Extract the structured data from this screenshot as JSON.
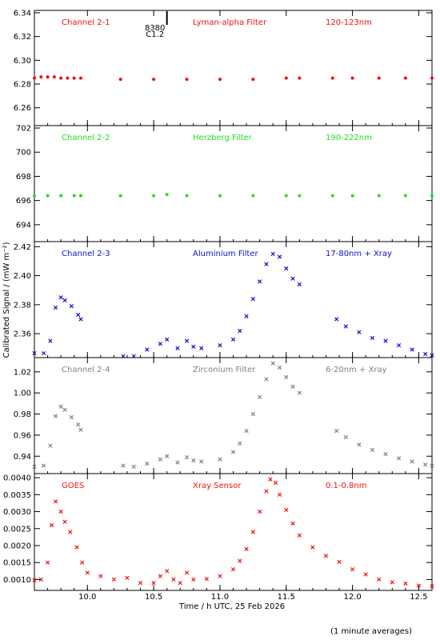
{
  "chart_data": {
    "type": "scatter",
    "ylabel": "Calibrated Signal / (mW m⁻²)",
    "xlabel": "Time / h UTC, 25 Feb 2026",
    "footnote": "(1 minute averages)",
    "xlim": [
      9.6,
      12.6
    ],
    "x_ticks": [
      "10.0",
      "10.5",
      "11.0",
      "11.5",
      "12.0",
      "12.5"
    ],
    "x_tick_values": [
      10.0,
      10.5,
      11.0,
      11.5,
      12.0,
      12.5
    ],
    "marker": "x",
    "event_annotation": {
      "x": 10.6,
      "labels": [
        "8380",
        "C1.2"
      ]
    },
    "panels": [
      {
        "channel": "Channel 2-1",
        "filter": "Lyman-alpha Filter",
        "band": "120-123nm",
        "color": "#ee1111",
        "marker": "dot",
        "ylim": [
          6.245,
          6.342
        ],
        "yticks": [
          6.26,
          6.28,
          6.3,
          6.32,
          6.34
        ],
        "ytick_labels": [
          "6.26",
          "6.28",
          "6.30",
          "6.32",
          "6.34"
        ],
        "x": [
          9.6,
          9.65,
          9.7,
          9.75,
          9.8,
          9.85,
          9.9,
          9.95,
          10.25,
          10.5,
          10.75,
          11.0,
          11.25,
          11.5,
          11.6,
          11.85,
          12.0,
          12.2,
          12.4,
          12.6
        ],
        "y": [
          6.285,
          6.286,
          6.286,
          6.286,
          6.285,
          6.285,
          6.285,
          6.285,
          6.284,
          6.284,
          6.284,
          6.284,
          6.284,
          6.285,
          6.285,
          6.285,
          6.285,
          6.285,
          6.285,
          6.285
        ]
      },
      {
        "channel": "Channel 2-2",
        "filter": "Herzberg Filter",
        "band": "190-222nm",
        "color": "#22dd22",
        "marker": "dot",
        "ylim": [
          692.6,
          702.2
        ],
        "yticks": [
          694,
          696,
          698,
          700,
          702
        ],
        "ytick_labels": [
          "694",
          "696",
          "698",
          "700",
          "702"
        ],
        "x": [
          9.6,
          9.7,
          9.8,
          9.9,
          9.95,
          10.25,
          10.5,
          10.6,
          10.75,
          11.0,
          11.25,
          11.5,
          11.6,
          11.85,
          12.0,
          12.2,
          12.4,
          12.6
        ],
        "y": [
          696.4,
          696.4,
          696.4,
          696.4,
          696.4,
          696.4,
          696.4,
          696.5,
          696.4,
          696.4,
          696.4,
          696.4,
          696.4,
          696.4,
          696.4,
          696.4,
          696.4,
          696.4
        ]
      },
      {
        "channel": "Channel 2-3",
        "filter": "Aluminium Filter",
        "band": "17-80nm + Xray",
        "color": "#1111cc",
        "marker": "x",
        "ylim": [
          2.3435,
          2.4235
        ],
        "yticks": [
          2.36,
          2.38,
          2.4,
          2.42
        ],
        "ytick_labels": [
          "2.36",
          "2.38",
          "2.40",
          "2.42"
        ],
        "x": [
          9.6,
          9.67,
          9.72,
          9.76,
          9.8,
          9.83,
          9.88,
          9.93,
          9.95,
          10.27,
          10.35,
          10.45,
          10.55,
          10.6,
          10.68,
          10.75,
          10.8,
          10.86,
          11.0,
          11.1,
          11.15,
          11.2,
          11.25,
          11.3,
          11.35,
          11.4,
          11.45,
          11.5,
          11.55,
          11.6,
          11.88,
          11.95,
          12.05,
          12.15,
          12.25,
          12.35,
          12.45,
          12.55,
          12.6
        ],
        "y": [
          2.3465,
          2.3465,
          2.355,
          2.378,
          2.385,
          2.383,
          2.379,
          2.373,
          2.37,
          2.3445,
          2.3445,
          2.349,
          2.353,
          2.356,
          2.35,
          2.355,
          2.351,
          2.35,
          2.352,
          2.356,
          2.362,
          2.372,
          2.384,
          2.396,
          2.408,
          2.415,
          2.413,
          2.405,
          2.398,
          2.394,
          2.37,
          2.365,
          2.361,
          2.357,
          2.355,
          2.352,
          2.349,
          2.346,
          2.345
        ]
      },
      {
        "channel": "Channel 2-4",
        "filter": "Zirconium Filter",
        "band": "6-20nm + Xray",
        "color": "#808080",
        "marker": "x",
        "ylim": [
          0.9235,
          1.0335
        ],
        "yticks": [
          0.94,
          0.96,
          0.98,
          1.0,
          1.02
        ],
        "ytick_labels": [
          "0.94",
          "0.96",
          "0.98",
          "1.00",
          "1.02"
        ],
        "x": [
          9.6,
          9.67,
          9.72,
          9.76,
          9.8,
          9.83,
          9.88,
          9.93,
          9.95,
          10.27,
          10.35,
          10.45,
          10.55,
          10.6,
          10.68,
          10.75,
          10.8,
          10.86,
          11.0,
          11.1,
          11.15,
          11.2,
          11.25,
          11.3,
          11.35,
          11.4,
          11.45,
          11.5,
          11.55,
          11.6,
          11.88,
          11.95,
          12.05,
          12.15,
          12.25,
          12.35,
          12.45,
          12.55,
          12.6
        ],
        "y": [
          0.93,
          0.931,
          0.95,
          0.978,
          0.987,
          0.984,
          0.977,
          0.97,
          0.965,
          0.931,
          0.93,
          0.933,
          0.937,
          0.94,
          0.934,
          0.939,
          0.936,
          0.935,
          0.937,
          0.944,
          0.952,
          0.964,
          0.98,
          0.996,
          1.013,
          1.028,
          1.024,
          1.015,
          1.006,
          1.0,
          0.964,
          0.958,
          0.951,
          0.946,
          0.942,
          0.938,
          0.935,
          0.932,
          0.931
        ]
      },
      {
        "channel": "GOES",
        "filter": "Xray Sensor",
        "band": "0.1-0.8nm",
        "color": "#ee1111",
        "marker": "x",
        "ylim": [
          0.00068,
          0.00412
        ],
        "yticks": [
          0.001,
          0.0015,
          0.002,
          0.0025,
          0.003,
          0.0035,
          0.004
        ],
        "ytick_labels": [
          "0.0010",
          "0.0015",
          "0.0020",
          "0.0025",
          "0.0030",
          "0.0035",
          "0.0040"
        ],
        "x": [
          9.6,
          9.65,
          9.7,
          9.73,
          9.76,
          9.8,
          9.83,
          9.87,
          9.92,
          9.96,
          10.0,
          10.1,
          10.2,
          10.3,
          10.4,
          10.5,
          10.55,
          10.6,
          10.65,
          10.7,
          10.75,
          10.8,
          10.9,
          11.0,
          11.1,
          11.15,
          11.2,
          11.25,
          11.3,
          11.35,
          11.38,
          11.42,
          11.45,
          11.5,
          11.55,
          11.6,
          11.7,
          11.8,
          11.9,
          12.0,
          12.1,
          12.2,
          12.3,
          12.4,
          12.5,
          12.6
        ],
        "y": [
          0.00098,
          0.001,
          0.0015,
          0.0026,
          0.0033,
          0.003,
          0.0027,
          0.0024,
          0.00195,
          0.0015,
          0.0012,
          0.0011,
          0.001,
          0.00105,
          0.0009,
          0.0009,
          0.0011,
          0.00125,
          0.001,
          0.0009,
          0.0012,
          0.001,
          0.00102,
          0.0011,
          0.0013,
          0.00155,
          0.0019,
          0.0024,
          0.003,
          0.0036,
          0.00395,
          0.00385,
          0.0035,
          0.00305,
          0.00265,
          0.0023,
          0.00195,
          0.0017,
          0.00152,
          0.0013,
          0.00115,
          0.001,
          0.00092,
          0.00088,
          0.00082,
          0.0008
        ]
      }
    ]
  }
}
